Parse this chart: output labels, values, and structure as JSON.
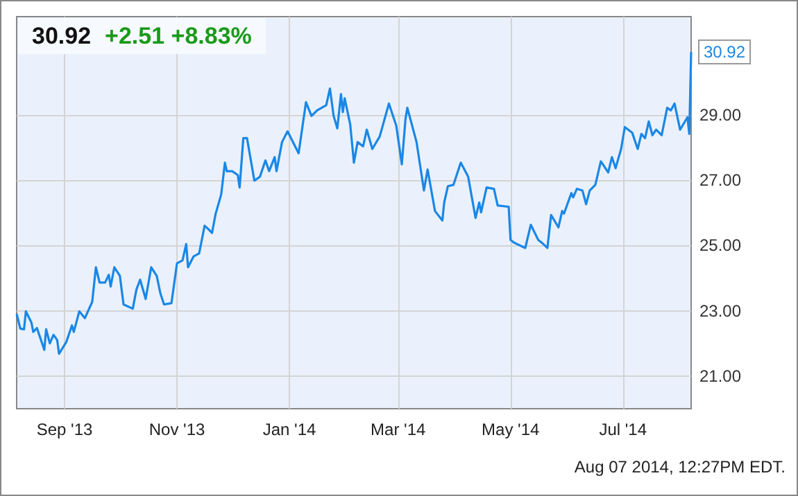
{
  "chart_data": {
    "type": "line",
    "title": "30.92",
    "subtitle": "+2.51 +8.83%",
    "annotations": [
      "Aug 07 2014, 12:27PM EDT."
    ],
    "x": [
      "2013-08-06",
      "2013-08-08",
      "2013-08-10",
      "2013-08-11",
      "2013-08-14",
      "2013-08-15",
      "2013-08-17",
      "2013-08-21",
      "2013-08-22",
      "2013-08-24",
      "2013-08-26",
      "2013-08-28",
      "2013-08-29",
      "2013-09-02",
      "2013-09-05",
      "2013-09-06",
      "2013-09-09",
      "2013-09-12",
      "2013-09-16",
      "2013-09-18",
      "2013-09-20",
      "2013-09-23",
      "2013-09-25",
      "2013-09-26",
      "2013-09-28",
      "2013-10-01",
      "2013-10-03",
      "2013-10-08",
      "2013-10-10",
      "2013-10-12",
      "2013-10-15",
      "2013-10-18",
      "2013-10-21",
      "2013-10-23",
      "2013-10-25",
      "2013-10-29",
      "2013-11-01",
      "2013-11-04",
      "2013-11-06",
      "2013-11-07",
      "2013-11-10",
      "2013-11-13",
      "2013-11-16",
      "2013-11-18",
      "2013-11-20",
      "2013-11-22",
      "2013-11-25",
      "2013-11-27",
      "2013-11-28",
      "2013-12-01",
      "2013-12-04",
      "2013-12-05",
      "2013-12-07",
      "2013-12-09",
      "2013-12-13",
      "2013-12-16",
      "2013-12-19",
      "2013-12-21",
      "2013-12-24",
      "2013-12-25",
      "2013-12-28",
      "2013-12-31",
      "2014-01-06",
      "2014-01-10",
      "2014-01-13",
      "2014-01-16",
      "2014-01-21",
      "2014-01-23",
      "2014-01-25",
      "2014-01-27",
      "2014-01-29",
      "2014-01-30",
      "2014-01-31",
      "2014-02-03",
      "2014-02-05",
      "2014-02-07",
      "2014-02-10",
      "2014-02-12",
      "2014-02-15",
      "2014-02-19",
      "2014-02-24",
      "2014-02-28",
      "2014-03-03",
      "2014-03-05",
      "2014-03-06",
      "2014-03-11",
      "2014-03-15",
      "2014-03-17",
      "2014-03-21",
      "2014-03-25",
      "2014-03-26",
      "2014-03-28",
      "2014-03-31",
      "2014-04-04",
      "2014-04-08",
      "2014-04-12",
      "2014-04-14",
      "2014-04-15",
      "2014-04-18",
      "2014-04-22",
      "2014-04-24",
      "2014-04-30",
      "2014-05-01",
      "2014-05-03",
      "2014-05-09",
      "2014-05-12",
      "2014-05-16",
      "2014-05-18",
      "2014-05-21",
      "2014-05-23",
      "2014-05-27",
      "2014-05-29",
      "2014-05-30",
      "2014-06-03",
      "2014-06-04",
      "2014-06-06",
      "2014-06-09",
      "2014-06-11",
      "2014-06-13",
      "2014-06-16",
      "2014-06-19",
      "2014-06-23",
      "2014-06-25",
      "2014-06-27",
      "2014-06-30",
      "2014-07-02",
      "2014-07-06",
      "2014-07-09",
      "2014-07-11",
      "2014-07-13",
      "2014-07-15",
      "2014-07-17",
      "2014-07-19",
      "2014-07-22",
      "2014-07-25",
      "2014-07-27",
      "2014-07-29",
      "2014-08-01",
      "2014-08-05",
      "2014-08-06",
      "2014-08-07"
    ],
    "series": [
      {
        "color": "#1a87e6",
        "values": [
          22.9,
          22.45,
          22.43,
          22.98,
          22.64,
          22.35,
          22.47,
          21.8,
          22.43,
          22.0,
          22.26,
          22.1,
          21.68,
          22.05,
          22.55,
          22.35,
          22.98,
          22.77,
          23.27,
          24.33,
          23.86,
          23.86,
          24.1,
          23.74,
          24.33,
          24.07,
          23.19,
          23.06,
          23.65,
          23.95,
          23.36,
          24.33,
          24.07,
          23.53,
          23.19,
          23.23,
          24.45,
          24.54,
          25.04,
          24.33,
          24.66,
          24.75,
          25.6,
          25.5,
          25.38,
          25.97,
          26.56,
          27.53,
          27.27,
          27.27,
          27.15,
          26.77,
          28.28,
          28.28,
          26.98,
          27.1,
          27.6,
          27.27,
          27.7,
          27.27,
          28.16,
          28.49,
          27.82,
          29.38,
          28.96,
          29.13,
          29.29,
          29.8,
          28.96,
          28.58,
          29.63,
          29.08,
          29.5,
          28.7,
          27.53,
          28.16,
          28.03,
          28.54,
          27.95,
          28.33,
          29.34,
          28.66,
          27.48,
          28.87,
          29.21,
          28.16,
          26.68,
          27.32,
          26.05,
          25.76,
          26.31,
          26.81,
          26.85,
          27.53,
          27.1,
          25.84,
          26.31,
          26.01,
          26.77,
          26.73,
          26.22,
          26.18,
          25.17,
          25.08,
          24.92,
          25.63,
          25.17,
          25.08,
          24.92,
          25.93,
          25.55,
          26.05,
          25.97,
          26.6,
          26.47,
          26.73,
          26.68,
          26.26,
          26.68,
          26.85,
          27.57,
          27.23,
          27.7,
          27.36,
          27.95,
          28.62,
          28.45,
          27.95,
          28.41,
          28.28,
          28.79,
          28.37,
          28.54,
          28.37,
          29.21,
          29.13,
          29.34,
          28.54,
          28.92,
          28.41,
          30.92
        ],
        "value_labels": [
          null,
          null,
          null,
          null,
          null,
          null,
          null,
          null,
          null,
          null,
          null,
          null,
          null,
          null,
          null,
          null,
          null,
          null,
          null,
          null,
          null,
          null,
          null,
          null,
          null,
          null,
          null,
          null,
          null,
          null,
          null,
          null,
          null,
          null,
          null,
          null,
          null,
          null,
          null,
          null,
          null,
          null,
          null,
          null,
          null,
          null,
          null,
          null,
          null,
          null,
          null,
          null,
          null,
          null,
          null,
          null,
          null,
          null,
          null,
          null,
          null,
          null,
          null,
          null,
          null,
          null,
          null,
          null,
          null,
          null,
          null,
          null,
          null,
          null,
          null,
          null,
          null,
          null,
          null,
          null,
          null,
          null,
          null,
          null,
          null,
          null,
          null,
          null,
          null,
          null,
          null,
          null,
          null,
          null,
          null,
          null,
          null,
          null,
          null,
          null,
          null,
          null,
          null,
          null,
          null,
          null,
          null,
          null,
          null,
          null,
          null,
          null,
          null,
          null,
          null,
          null,
          null,
          null,
          null,
          null,
          null,
          null,
          null,
          null,
          null,
          null,
          null,
          null,
          null,
          null,
          null,
          null,
          null,
          null,
          null,
          null,
          null,
          null,
          null,
          null,
          "30.92"
        ]
      }
    ],
    "xlim": [
      "2013-08-06",
      "2014-08-07"
    ],
    "xticks": [
      {
        "value": "2013-09-01",
        "label": "Sep '13"
      },
      {
        "value": "2013-11-01",
        "label": "Nov '13"
      },
      {
        "value": "2014-01-01",
        "label": "Jan '14"
      },
      {
        "value": "2014-03-01",
        "label": "Mar '14"
      },
      {
        "value": "2014-05-01",
        "label": "May '14"
      },
      {
        "value": "2014-07-01",
        "label": "Jul '14"
      }
    ],
    "ylim": [
      20,
      32
    ],
    "yticks": [
      {
        "value": 21,
        "label": "21.00"
      },
      {
        "value": 23,
        "label": "23.00"
      },
      {
        "value": 25,
        "label": "25.00"
      },
      {
        "value": 27,
        "label": "27.00"
      },
      {
        "value": 29,
        "label": "29.00"
      }
    ],
    "grid": true,
    "marker": "none",
    "line_style": "solid"
  }
}
